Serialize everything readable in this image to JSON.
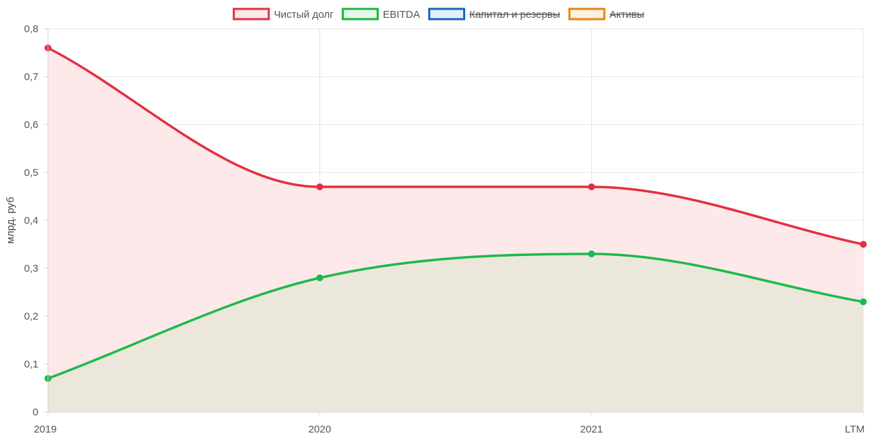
{
  "chart_data": {
    "type": "line",
    "title": "",
    "xlabel": "",
    "ylabel": "млрд. руб",
    "ylim": [
      0,
      0.8
    ],
    "y_ticks": [
      "0",
      "0,1",
      "0,2",
      "0,3",
      "0,4",
      "0,5",
      "0,6",
      "0,7",
      "0,8"
    ],
    "y_tick_values": [
      0,
      0.1,
      0.2,
      0.3,
      0.4,
      0.5,
      0.6,
      0.7,
      0.8
    ],
    "categories": [
      "2019",
      "2020",
      "2021",
      "LTM"
    ],
    "grid": true,
    "legend_position": "top-center",
    "legend": [
      {
        "name": "Чистый долг",
        "color": "#e3303f",
        "fill": "#fde8ea",
        "hidden": false
      },
      {
        "name": "EBITDA",
        "color": "#14b83c",
        "fill": "#e6f7ea",
        "hidden": false
      },
      {
        "name": "Капитал и резервы",
        "color": "#1565c0",
        "fill": "#e3eefa",
        "hidden": true
      },
      {
        "name": "Активы",
        "color": "#e8840c",
        "fill": "#fdf0e0",
        "hidden": true
      }
    ],
    "series": [
      {
        "name": "Чистый долг",
        "values": [
          0.76,
          0.47,
          0.47,
          0.35
        ],
        "color": "#e3303f",
        "fill": "#fde8ea"
      },
      {
        "name": "EBITDA",
        "values": [
          0.07,
          0.28,
          0.33,
          0.23
        ],
        "color": "#1db94a",
        "fill": "#ebe7da"
      }
    ]
  }
}
